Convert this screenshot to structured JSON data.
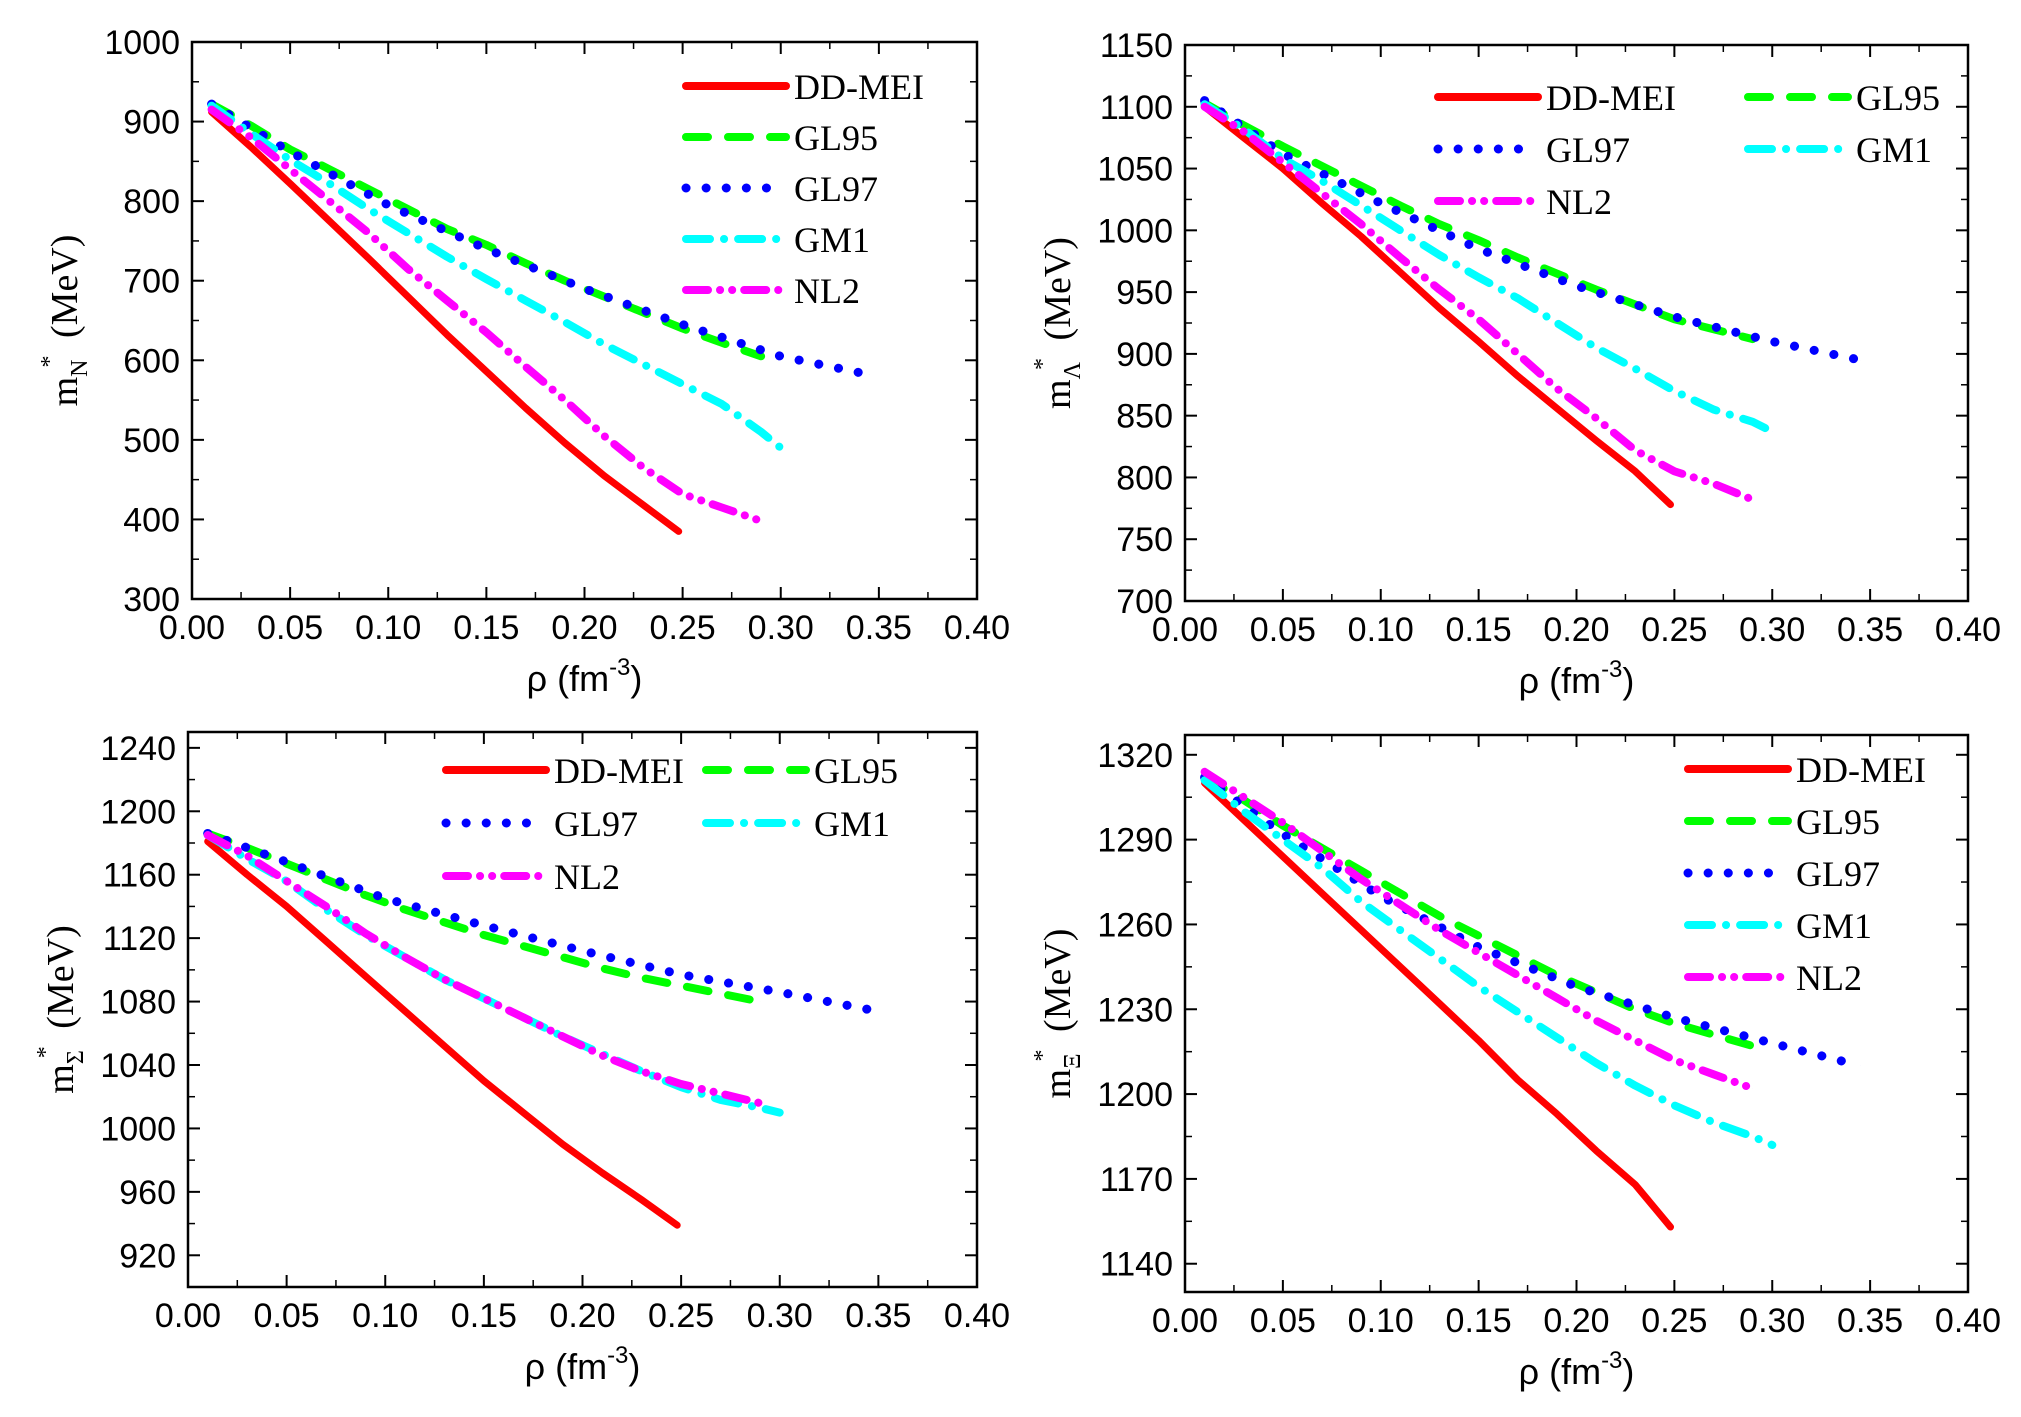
{
  "chart_data": [
    {
      "id": "nucleon",
      "type": "line",
      "ylabel": {
        "symbol": "m",
        "superscript": "*",
        "subscript": "N",
        "unit": "(MeV)"
      },
      "xlabel": {
        "text": "ρ (fm",
        "superscript": "-3",
        "close": ")"
      },
      "xlim": [
        0.0,
        0.4
      ],
      "ylim": [
        300,
        1000
      ],
      "xticks": [
        "0.00",
        "0.05",
        "0.10",
        "0.15",
        "0.20",
        "0.25",
        "0.30",
        "0.35",
        "0.40"
      ],
      "yticks": [
        "300",
        "400",
        "500",
        "600",
        "700",
        "800",
        "900",
        "1000"
      ],
      "legend": {
        "placement": "top-right",
        "columns": 1
      },
      "series": [
        {
          "name": "DD-MEI",
          "style": "solid",
          "color": "#ff0000",
          "x": [
            0.01,
            0.03,
            0.05,
            0.07,
            0.09,
            0.11,
            0.13,
            0.15,
            0.17,
            0.19,
            0.21,
            0.23,
            0.248
          ],
          "y": [
            912,
            868,
            822,
            775,
            728,
            680,
            632,
            586,
            540,
            496,
            455,
            418,
            385
          ]
        },
        {
          "name": "GL95",
          "style": "dash",
          "color": "#00ff00",
          "x": [
            0.01,
            0.03,
            0.05,
            0.07,
            0.09,
            0.11,
            0.13,
            0.15,
            0.17,
            0.19,
            0.21,
            0.23,
            0.25,
            0.27,
            0.29
          ],
          "y": [
            922,
            895,
            865,
            840,
            815,
            790,
            765,
            745,
            722,
            700,
            680,
            660,
            640,
            622,
            605
          ]
        },
        {
          "name": "GL97",
          "style": "dot",
          "color": "#0000ff",
          "x": [
            0.01,
            0.05,
            0.1,
            0.15,
            0.2,
            0.25,
            0.3,
            0.345
          ],
          "y": [
            922,
            862,
            795,
            740,
            690,
            645,
            605,
            582
          ]
        },
        {
          "name": "GM1",
          "style": "dashdot",
          "color": "#00ffff",
          "x": [
            0.01,
            0.03,
            0.05,
            0.07,
            0.09,
            0.11,
            0.13,
            0.15,
            0.17,
            0.19,
            0.21,
            0.23,
            0.25,
            0.27,
            0.29,
            0.3
          ],
          "y": [
            920,
            885,
            852,
            822,
            790,
            760,
            730,
            702,
            675,
            648,
            620,
            595,
            570,
            545,
            510,
            490
          ]
        },
        {
          "name": "NL2",
          "style": "dashdotdot",
          "color": "#ff00ff",
          "x": [
            0.01,
            0.03,
            0.05,
            0.07,
            0.09,
            0.11,
            0.13,
            0.15,
            0.17,
            0.19,
            0.21,
            0.23,
            0.25,
            0.27,
            0.29
          ],
          "y": [
            915,
            880,
            840,
            800,
            760,
            715,
            675,
            635,
            592,
            550,
            505,
            465,
            432,
            415,
            398
          ]
        }
      ]
    },
    {
      "id": "lambda",
      "type": "line",
      "ylabel": {
        "symbol": "m",
        "superscript": "*",
        "subscript": "Λ",
        "unit": "(MeV)"
      },
      "xlabel": {
        "text": "ρ (fm",
        "superscript": "-3",
        "close": ")"
      },
      "xlim": [
        0.0,
        0.4
      ],
      "ylim": [
        700,
        1150
      ],
      "xticks": [
        "0.00",
        "0.05",
        "0.10",
        "0.15",
        "0.20",
        "0.25",
        "0.30",
        "0.35",
        "0.40"
      ],
      "yticks": [
        "700",
        "750",
        "800",
        "850",
        "900",
        "950",
        "1000",
        "1050",
        "1100",
        "1150"
      ],
      "legend": {
        "placement": "top-right",
        "columns": 2
      },
      "series": [
        {
          "name": "DD-MEI",
          "style": "solid",
          "color": "#ff0000",
          "x": [
            0.01,
            0.03,
            0.05,
            0.07,
            0.09,
            0.11,
            0.13,
            0.15,
            0.17,
            0.19,
            0.21,
            0.23,
            0.248
          ],
          "y": [
            1100,
            1075,
            1050,
            1022,
            995,
            966,
            937,
            910,
            882,
            856,
            830,
            805,
            778
          ]
        },
        {
          "name": "GL95",
          "style": "dash",
          "color": "#00ff00",
          "x": [
            0.01,
            0.03,
            0.05,
            0.07,
            0.09,
            0.11,
            0.13,
            0.15,
            0.17,
            0.19,
            0.21,
            0.23,
            0.25,
            0.27,
            0.29
          ],
          "y": [
            1103,
            1085,
            1068,
            1052,
            1036,
            1020,
            1005,
            992,
            978,
            965,
            952,
            940,
            928,
            920,
            912
          ]
        },
        {
          "name": "GL97",
          "style": "dot",
          "color": "#0000ff",
          "x": [
            0.01,
            0.05,
            0.1,
            0.15,
            0.2,
            0.25,
            0.3,
            0.345
          ],
          "y": [
            1105,
            1062,
            1022,
            985,
            955,
            930,
            910,
            895
          ]
        },
        {
          "name": "GM1",
          "style": "dashdot",
          "color": "#00ffff",
          "x": [
            0.01,
            0.03,
            0.05,
            0.07,
            0.09,
            0.11,
            0.13,
            0.15,
            0.17,
            0.19,
            0.21,
            0.23,
            0.25,
            0.27,
            0.29,
            0.3
          ],
          "y": [
            1102,
            1082,
            1058,
            1040,
            1020,
            1000,
            980,
            962,
            945,
            925,
            905,
            888,
            870,
            855,
            845,
            837
          ]
        },
        {
          "name": "NL2",
          "style": "dashdotdot",
          "color": "#ff00ff",
          "x": [
            0.01,
            0.03,
            0.05,
            0.07,
            0.09,
            0.11,
            0.13,
            0.15,
            0.17,
            0.19,
            0.21,
            0.23,
            0.25,
            0.27,
            0.29
          ],
          "y": [
            1100,
            1080,
            1055,
            1030,
            1005,
            978,
            952,
            928,
            900,
            872,
            848,
            822,
            805,
            795,
            782
          ]
        }
      ]
    },
    {
      "id": "sigma",
      "type": "line",
      "ylabel": {
        "symbol": "m",
        "superscript": "*",
        "subscript": "Σ",
        "unit": "(MeV)"
      },
      "xlabel": {
        "text": "ρ (fm",
        "superscript": "-3",
        "close": ")"
      },
      "xlim": [
        0.0,
        0.4
      ],
      "ylim": [
        900,
        1250
      ],
      "xticks": [
        "0.00",
        "0.05",
        "0.10",
        "0.15",
        "0.20",
        "0.25",
        "0.30",
        "0.35",
        "0.40"
      ],
      "yticks": [
        "920",
        "960",
        "1000",
        "1040",
        "1080",
        "1120",
        "1160",
        "1200",
        "1240"
      ],
      "legend": {
        "placement": "top-right",
        "columns": 2
      },
      "series": [
        {
          "name": "DD-MEI",
          "style": "solid",
          "color": "#ff0000",
          "x": [
            0.01,
            0.03,
            0.05,
            0.07,
            0.09,
            0.11,
            0.13,
            0.15,
            0.17,
            0.19,
            0.21,
            0.23,
            0.248
          ],
          "y": [
            1181,
            1160,
            1140,
            1118,
            1096,
            1074,
            1052,
            1030,
            1010,
            990,
            972,
            955,
            939
          ]
        },
        {
          "name": "GL95",
          "style": "dash",
          "color": "#00ff00",
          "x": [
            0.01,
            0.03,
            0.05,
            0.07,
            0.09,
            0.11,
            0.13,
            0.15,
            0.17,
            0.19,
            0.21,
            0.23,
            0.25,
            0.27,
            0.29
          ],
          "y": [
            1186,
            1177,
            1167,
            1157,
            1147,
            1138,
            1130,
            1122,
            1115,
            1108,
            1101,
            1095,
            1090,
            1085,
            1080
          ]
        },
        {
          "name": "GL97",
          "style": "dot",
          "color": "#0000ff",
          "x": [
            0.01,
            0.05,
            0.1,
            0.15,
            0.2,
            0.25,
            0.3,
            0.345
          ],
          "y": [
            1186,
            1168,
            1145,
            1128,
            1112,
            1097,
            1086,
            1075
          ]
        },
        {
          "name": "GM1",
          "style": "dashdot",
          "color": "#00ffff",
          "x": [
            0.01,
            0.03,
            0.05,
            0.07,
            0.09,
            0.11,
            0.13,
            0.15,
            0.17,
            0.19,
            0.21,
            0.23,
            0.25,
            0.27,
            0.29,
            0.3
          ],
          "y": [
            1185,
            1170,
            1156,
            1138,
            1122,
            1108,
            1094,
            1082,
            1070,
            1058,
            1047,
            1036,
            1026,
            1018,
            1013,
            1010
          ]
        },
        {
          "name": "NL2",
          "style": "dashdotdot",
          "color": "#ff00ff",
          "x": [
            0.01,
            0.03,
            0.05,
            0.07,
            0.09,
            0.11,
            0.13,
            0.15,
            0.17,
            0.19,
            0.21,
            0.23,
            0.25,
            0.27,
            0.29
          ],
          "y": [
            1185,
            1172,
            1156,
            1140,
            1123,
            1108,
            1094,
            1082,
            1070,
            1058,
            1046,
            1036,
            1028,
            1022,
            1016
          ]
        }
      ]
    },
    {
      "id": "xi",
      "type": "line",
      "ylabel": {
        "symbol": "m",
        "superscript": "*",
        "subscript": "Ξ",
        "unit": "(MeV)"
      },
      "xlabel": {
        "text": "ρ (fm",
        "superscript": "-3",
        "close": ")"
      },
      "xlim": [
        0.0,
        0.4
      ],
      "ylim": [
        1130,
        1327
      ],
      "xticks": [
        "0.00",
        "0.05",
        "0.10",
        "0.15",
        "0.20",
        "0.25",
        "0.30",
        "0.35",
        "0.40"
      ],
      "yticks": [
        "1140",
        "1170",
        "1200",
        "1230",
        "1260",
        "1290",
        "1320"
      ],
      "legend": {
        "placement": "top-right",
        "columns": 1
      },
      "series": [
        {
          "name": "DD-MEI",
          "style": "solid",
          "color": "#ff0000",
          "x": [
            0.01,
            0.03,
            0.05,
            0.07,
            0.09,
            0.11,
            0.13,
            0.15,
            0.17,
            0.19,
            0.21,
            0.23,
            0.248
          ],
          "y": [
            1310,
            1297,
            1284,
            1271,
            1258,
            1245,
            1232,
            1219,
            1205,
            1193,
            1180,
            1168,
            1153
          ]
        },
        {
          "name": "GL95",
          "style": "dash",
          "color": "#00ff00",
          "x": [
            0.01,
            0.03,
            0.05,
            0.07,
            0.09,
            0.11,
            0.13,
            0.15,
            0.17,
            0.19,
            0.21,
            0.23,
            0.25,
            0.27,
            0.29
          ],
          "y": [
            1312,
            1304,
            1295,
            1287,
            1279,
            1271,
            1263,
            1256,
            1249,
            1242,
            1236,
            1230,
            1225,
            1221,
            1217
          ]
        },
        {
          "name": "GL97",
          "style": "dot",
          "color": "#0000ff",
          "x": [
            0.01,
            0.05,
            0.1,
            0.15,
            0.2,
            0.25,
            0.3,
            0.345
          ],
          "y": [
            1312,
            1292,
            1270,
            1252,
            1238,
            1227,
            1218,
            1210
          ]
        },
        {
          "name": "GM1",
          "style": "dashdot",
          "color": "#00ffff",
          "x": [
            0.01,
            0.03,
            0.05,
            0.07,
            0.09,
            0.11,
            0.13,
            0.15,
            0.17,
            0.19,
            0.21,
            0.23,
            0.25,
            0.27,
            0.29,
            0.3
          ],
          "y": [
            1311,
            1300,
            1290,
            1280,
            1268,
            1258,
            1248,
            1238,
            1229,
            1220,
            1211,
            1203,
            1196,
            1190,
            1185,
            1182
          ]
        },
        {
          "name": "NL2",
          "style": "dashdotdot",
          "color": "#ff00ff",
          "x": [
            0.01,
            0.03,
            0.05,
            0.07,
            0.09,
            0.11,
            0.13,
            0.15,
            0.17,
            0.19,
            0.21,
            0.23,
            0.25,
            0.27,
            0.29
          ],
          "y": [
            1314,
            1305,
            1296,
            1286,
            1276,
            1267,
            1258,
            1250,
            1242,
            1234,
            1226,
            1219,
            1212,
            1207,
            1202
          ]
        }
      ]
    }
  ]
}
